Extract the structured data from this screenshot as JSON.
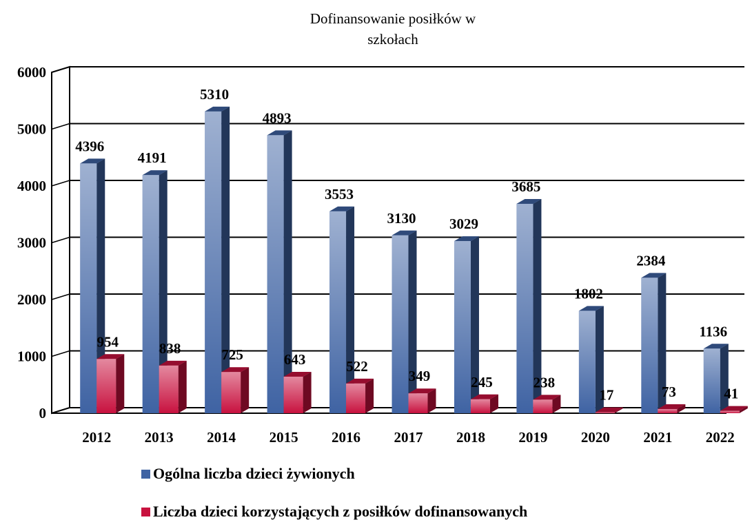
{
  "chart_data": {
    "type": "bar3d",
    "title": "Dofinansowanie posiłków w szkołach",
    "categories": [
      "2012",
      "2013",
      "2014",
      "2015",
      "2016",
      "2017",
      "2018",
      "2019",
      "2020",
      "2021",
      "2022"
    ],
    "series": [
      {
        "name": "Ogólna liczba dzieci żywionych",
        "color": "#3f63a3",
        "values": [
          4396,
          4191,
          5310,
          4893,
          3553,
          3130,
          3029,
          3685,
          1802,
          2384,
          1136
        ]
      },
      {
        "name": "Liczba dzieci korzystających z posiłków dofinansowanych",
        "color": "#c8123f",
        "values": [
          954,
          838,
          725,
          643,
          522,
          349,
          245,
          238,
          17,
          73,
          41
        ]
      }
    ],
    "ylim": [
      0,
      6000
    ],
    "yticks": [
      0,
      1000,
      2000,
      3000,
      4000,
      5000,
      6000
    ],
    "grid": true,
    "legend": "bottom"
  }
}
